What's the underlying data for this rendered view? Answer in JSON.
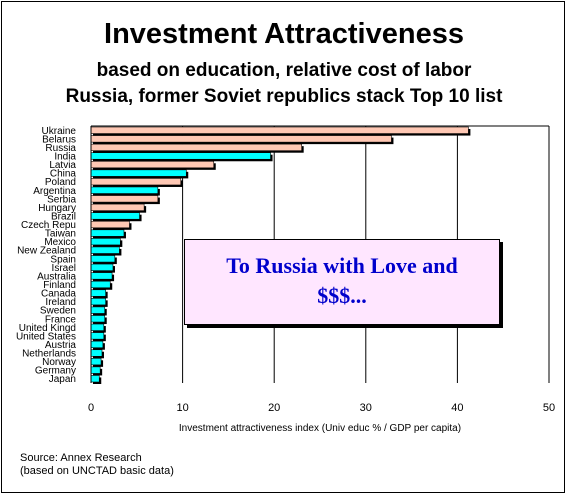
{
  "title": "Investment Attractiveness",
  "subtitle1": "based on education, relative cost of labor",
  "subtitle2": "Russia, former Soviet republics stack Top 10 list",
  "callout_line1": "To Russia with Love and",
  "callout_line2": "$$$...",
  "source_line1": "Source: Annex Research",
  "source_line2": "(based on UNCTAD basic data)",
  "colors": {
    "soviet": "#ffc8b4",
    "other": "#00ffff",
    "callout_bg": "#ffe6ff",
    "callout_text": "#0000cc"
  },
  "chart_data": {
    "type": "bar",
    "orientation": "horizontal",
    "xlabel": "Investment attractiveness index (Univ educ % / GDP per capita)",
    "xlim": [
      0,
      50
    ],
    "xticks": [
      0,
      10,
      20,
      30,
      40,
      50
    ],
    "grid": "vertical",
    "categories": [
      "Ukraine",
      "Belarus",
      "Russia",
      "India",
      "Latvia",
      "China",
      "Poland",
      "Argentina",
      "Serbia",
      "Hungary",
      "Brazil",
      "Czech Repu",
      "Taiwan",
      "Mexico",
      "New Zealand",
      "Spain",
      "Israel",
      "Australia",
      "Finland",
      "Canada",
      "Ireland",
      "Sweden",
      "France",
      "United Kingd",
      "United States",
      "Austria",
      "Netherlands",
      "Norway",
      "Germany",
      "Japan"
    ],
    "values": [
      41.2,
      32.8,
      23.0,
      19.6,
      13.4,
      10.4,
      9.8,
      7.3,
      7.3,
      5.8,
      5.3,
      4.2,
      3.6,
      3.2,
      3.1,
      2.6,
      2.4,
      2.3,
      2.1,
      1.6,
      1.6,
      1.5,
      1.5,
      1.4,
      1.4,
      1.3,
      1.2,
      1.1,
      1.0,
      0.9
    ],
    "group": [
      "soviet",
      "soviet",
      "soviet",
      "other",
      "soviet",
      "other",
      "soviet",
      "other",
      "soviet",
      "soviet",
      "other",
      "soviet",
      "other",
      "other",
      "other",
      "other",
      "other",
      "other",
      "other",
      "other",
      "other",
      "other",
      "other",
      "other",
      "other",
      "other",
      "other",
      "other",
      "other",
      "other"
    ]
  }
}
